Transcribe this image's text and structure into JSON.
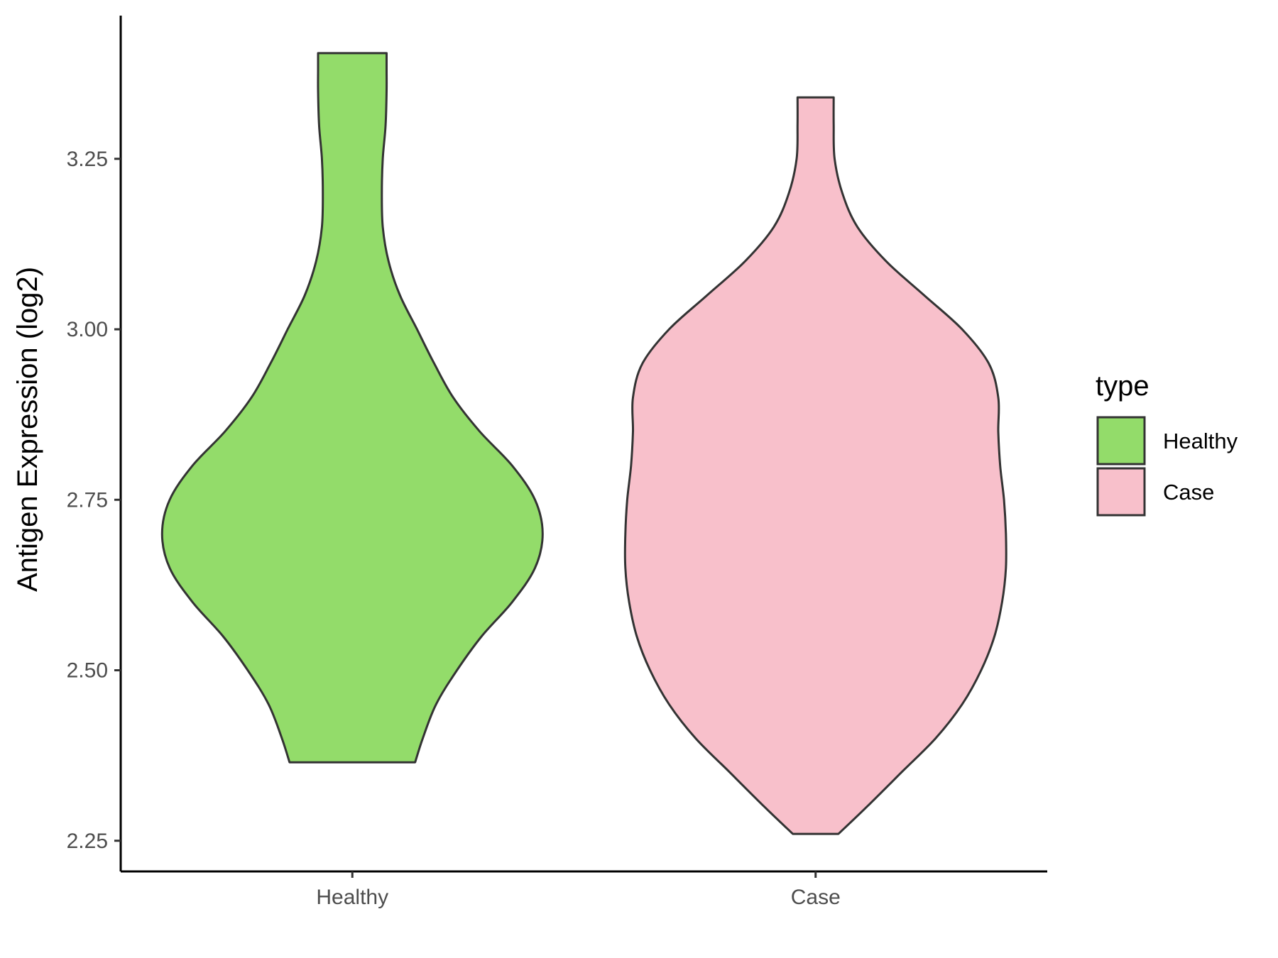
{
  "chart_data": {
    "type": "violin",
    "title": "",
    "xlabel": "",
    "ylabel": "Antigen Expression (log2)",
    "categories": [
      "Healthy",
      "Case"
    ],
    "ylim": [
      2.205,
      3.46
    ],
    "yticks": [
      2.25,
      2.5,
      2.75,
      3.0,
      3.25
    ],
    "ytick_labels": [
      "2.25",
      "2.50",
      "2.75",
      "3.00",
      "3.25"
    ],
    "legend": {
      "title": "type",
      "position": "right",
      "entries": [
        "Healthy",
        "Case"
      ]
    },
    "colors": {
      "Healthy": "#93dc6a",
      "Case": "#f8c0cb",
      "outline": "#333333",
      "axis": "#000000"
    },
    "series": [
      {
        "name": "Healthy",
        "min": 2.365,
        "max": 3.405,
        "profile": [
          [
            2.365,
            0.33
          ],
          [
            2.4,
            0.37
          ],
          [
            2.45,
            0.44
          ],
          [
            2.5,
            0.55
          ],
          [
            2.55,
            0.68
          ],
          [
            2.6,
            0.84
          ],
          [
            2.65,
            0.96
          ],
          [
            2.7,
            1.0
          ],
          [
            2.75,
            0.96
          ],
          [
            2.8,
            0.84
          ],
          [
            2.85,
            0.67
          ],
          [
            2.9,
            0.53
          ],
          [
            2.95,
            0.43
          ],
          [
            3.0,
            0.34
          ],
          [
            3.05,
            0.25
          ],
          [
            3.1,
            0.19
          ],
          [
            3.15,
            0.16
          ],
          [
            3.2,
            0.155
          ],
          [
            3.25,
            0.16
          ],
          [
            3.3,
            0.175
          ],
          [
            3.35,
            0.18
          ],
          [
            3.38,
            0.18
          ],
          [
            3.405,
            0.18
          ]
        ]
      },
      {
        "name": "Case",
        "min": 2.26,
        "max": 3.34,
        "profile": [
          [
            2.26,
            0.12
          ],
          [
            2.3,
            0.27
          ],
          [
            2.35,
            0.45
          ],
          [
            2.4,
            0.63
          ],
          [
            2.45,
            0.77
          ],
          [
            2.5,
            0.87
          ],
          [
            2.55,
            0.94
          ],
          [
            2.6,
            0.98
          ],
          [
            2.65,
            1.0
          ],
          [
            2.7,
            1.0
          ],
          [
            2.75,
            0.99
          ],
          [
            2.8,
            0.97
          ],
          [
            2.85,
            0.96
          ],
          [
            2.9,
            0.96
          ],
          [
            2.95,
            0.91
          ],
          [
            3.0,
            0.77
          ],
          [
            3.05,
            0.57
          ],
          [
            3.1,
            0.37
          ],
          [
            3.15,
            0.22
          ],
          [
            3.2,
            0.14
          ],
          [
            3.25,
            0.1
          ],
          [
            3.3,
            0.095
          ],
          [
            3.34,
            0.095
          ]
        ]
      }
    ]
  }
}
